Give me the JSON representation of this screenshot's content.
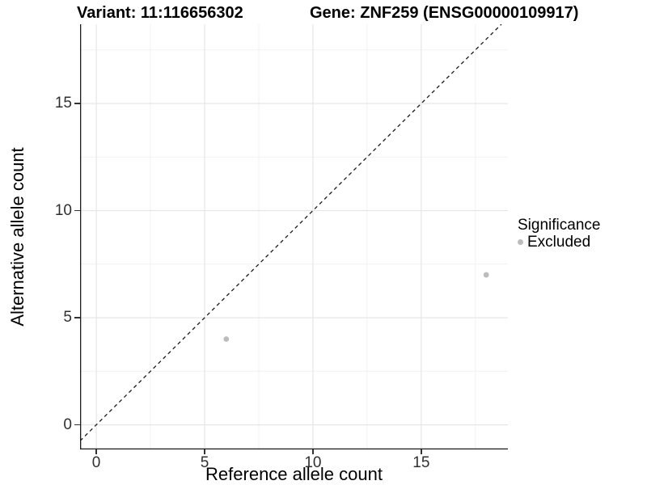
{
  "chart_data": {
    "type": "scatter",
    "titles": {
      "left": "Variant: 11:116656302",
      "right": "Gene: ZNF259 (ENSG00000109917)"
    },
    "xlabel": "Reference allele count",
    "ylabel": "Alternative allele count",
    "xlim": [
      -0.75,
      19.0
    ],
    "ylim": [
      -1.15,
      18.7
    ],
    "x_ticks": [
      0,
      5,
      10,
      15
    ],
    "y_ticks": [
      0,
      5,
      10,
      15
    ],
    "x_minor_ticks": [
      2.5,
      7.5,
      12.5,
      17.5
    ],
    "y_minor_ticks": [
      2.5,
      7.5,
      12.5,
      17.5
    ],
    "grid": true,
    "points": [
      {
        "x": 6,
        "y": 4,
        "series": "Excluded"
      },
      {
        "x": 18,
        "y": 7,
        "series": "Excluded"
      }
    ],
    "identity_line": {
      "slope": 1,
      "intercept": 0,
      "style": "dashed",
      "color": "#1a1a1a"
    },
    "legend": {
      "title": "Significance",
      "position": "right",
      "entries": [
        {
          "label": "Excluded",
          "color": "#bcbcbc"
        }
      ]
    },
    "colors": {
      "point": "#bcbcbc",
      "axis_line": "#1a1a1a",
      "grid_major": "#e4e4e4",
      "grid_minor": "#f1f1f1",
      "background": "#ffffff"
    }
  }
}
